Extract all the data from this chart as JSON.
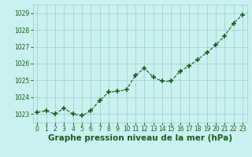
{
  "x": [
    0,
    1,
    2,
    3,
    4,
    5,
    6,
    7,
    8,
    9,
    10,
    11,
    12,
    13,
    14,
    15,
    16,
    17,
    18,
    19,
    20,
    21,
    22,
    23
  ],
  "y": [
    1023.1,
    1023.2,
    1023.0,
    1023.35,
    1023.0,
    1022.9,
    1023.2,
    1023.8,
    1024.3,
    1024.35,
    1024.45,
    1025.3,
    1025.72,
    1025.2,
    1024.95,
    1024.95,
    1025.55,
    1025.85,
    1026.25,
    1026.65,
    1027.1,
    1027.65,
    1028.4,
    1028.9
  ],
  "line_color": "#1a5c1a",
  "marker": "+",
  "marker_size": 4,
  "marker_lw": 1.2,
  "line_width": 0.8,
  "bg_color": "#caf0f0",
  "grid_color": "#99cccc",
  "xlabel": "Graphe pression niveau de la mer (hPa)",
  "xlabel_color": "#1a5c1a",
  "tick_color": "#1a5c1a",
  "ylim": [
    1022.5,
    1029.5
  ],
  "yticks": [
    1023,
    1024,
    1025,
    1026,
    1027,
    1028,
    1029
  ],
  "xticks": [
    0,
    1,
    2,
    3,
    4,
    5,
    6,
    7,
    8,
    9,
    10,
    11,
    12,
    13,
    14,
    15,
    16,
    17,
    18,
    19,
    20,
    21,
    22,
    23
  ],
  "tick_fontsize": 5.5,
  "xlabel_fontsize": 7.5,
  "fig_width": 3.2,
  "fig_height": 2.0,
  "dpi": 100
}
